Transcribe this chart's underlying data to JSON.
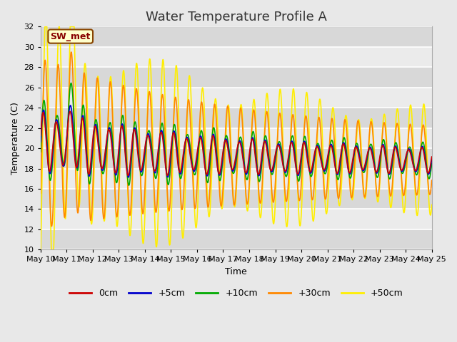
{
  "title": "Water Temperature Profile A",
  "xlabel": "Time",
  "ylabel": "Temperature (C)",
  "ylim": [
    10,
    32
  ],
  "x_tick_labels": [
    "May 10",
    "May 11",
    "May 12",
    "May 13",
    "May 14",
    "May 15",
    "May 16",
    "May 17",
    "May 18",
    "May 19",
    "May 20",
    "May 21",
    "May 22",
    "May 23",
    "May 24",
    "May 25"
  ],
  "yticks": [
    10,
    12,
    14,
    16,
    18,
    20,
    22,
    24,
    26,
    28,
    30,
    32
  ],
  "legend_labels": [
    "0cm",
    "+5cm",
    "+10cm",
    "+30cm",
    "+50cm"
  ],
  "line_colors": [
    "#cc0000",
    "#0000cc",
    "#00aa00",
    "#ff8800",
    "#ffee00"
  ],
  "annotation_text": "SW_met",
  "annotation_bg": "#ffffcc",
  "annotation_border": "#884400",
  "fig_bg_color": "#e8e8e8",
  "plot_bg_color": "#ebebeb",
  "title_fontsize": 13,
  "axis_fontsize": 9,
  "tick_fontsize": 8,
  "legend_fontsize": 9
}
